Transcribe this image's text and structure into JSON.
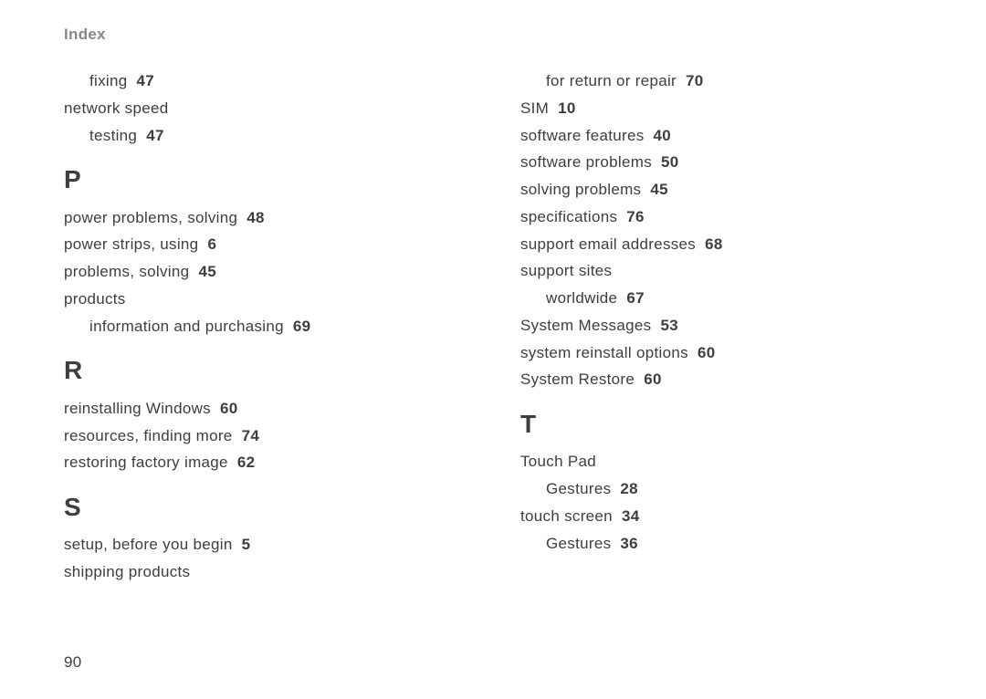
{
  "header": "Index",
  "page_number": "90",
  "left": {
    "pre_entries": [
      {
        "text": "fixing",
        "page": "47",
        "indent": 1
      },
      {
        "text": "network speed",
        "page": "",
        "indent": 0
      },
      {
        "text": "testing",
        "page": "47",
        "indent": 1
      }
    ],
    "sections": [
      {
        "letter": "P",
        "entries": [
          {
            "text": "power problems, solving",
            "page": "48",
            "indent": 0
          },
          {
            "text": "power strips, using",
            "page": "6",
            "indent": 0
          },
          {
            "text": "problems, solving",
            "page": "45",
            "indent": 0
          },
          {
            "text": "products",
            "page": "",
            "indent": 0
          },
          {
            "text": "information and purchasing",
            "page": "69",
            "indent": 1
          }
        ]
      },
      {
        "letter": "R",
        "entries": [
          {
            "text": "reinstalling Windows",
            "page": "60",
            "indent": 0
          },
          {
            "text": "resources, finding more",
            "page": "74",
            "indent": 0
          },
          {
            "text": "restoring factory image",
            "page": "62",
            "indent": 0
          }
        ]
      },
      {
        "letter": "S",
        "entries": [
          {
            "text": "setup, before you begin",
            "page": "5",
            "indent": 0
          },
          {
            "text": "shipping products",
            "page": "",
            "indent": 0
          }
        ]
      }
    ]
  },
  "right": {
    "pre_entries": [
      {
        "text": "for return or repair",
        "page": "70",
        "indent": 1
      },
      {
        "text": "SIM",
        "page": "10",
        "indent": 0
      },
      {
        "text": "software features",
        "page": "40",
        "indent": 0
      },
      {
        "text": "software problems",
        "page": "50",
        "indent": 0
      },
      {
        "text": "solving problems",
        "page": "45",
        "indent": 0
      },
      {
        "text": "specifications",
        "page": "76",
        "indent": 0
      },
      {
        "text": "support email addresses",
        "page": "68",
        "indent": 0
      },
      {
        "text": "support sites",
        "page": "",
        "indent": 0
      },
      {
        "text": "worldwide",
        "page": "67",
        "indent": 1
      },
      {
        "text": "System Messages",
        "page": "53",
        "indent": 0
      },
      {
        "text": "system reinstall options",
        "page": "60",
        "indent": 0
      },
      {
        "text": "System Restore",
        "page": "60",
        "indent": 0
      }
    ],
    "sections": [
      {
        "letter": "T",
        "entries": [
          {
            "text": "Touch Pad",
            "page": "",
            "indent": 0
          },
          {
            "text": "Gestures",
            "page": "28",
            "indent": 1
          },
          {
            "text": "touch screen",
            "page": "34",
            "indent": 0
          },
          {
            "text": "Gestures",
            "page": "36",
            "indent": 1
          }
        ]
      }
    ]
  }
}
